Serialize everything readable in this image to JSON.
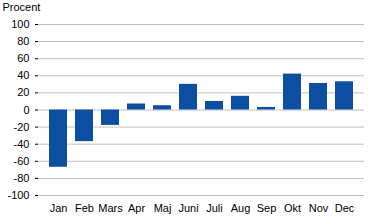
{
  "chart_data": {
    "type": "bar",
    "y_label": "Procent",
    "categories": [
      "Jan",
      "Feb",
      "Mars",
      "Apr",
      "Maj",
      "Juni",
      "Juli",
      "Aug",
      "Sep",
      "Okt",
      "Nov",
      "Dec"
    ],
    "values": [
      -67,
      -37,
      -18,
      7,
      5,
      30,
      10,
      16,
      3,
      42,
      31,
      33
    ],
    "color": "#0b4ea2",
    "ylim": [
      -100,
      100
    ],
    "yticks": [
      -100,
      -80,
      -60,
      -40,
      -20,
      0,
      20,
      40,
      60,
      80,
      100
    ],
    "grid": true
  }
}
